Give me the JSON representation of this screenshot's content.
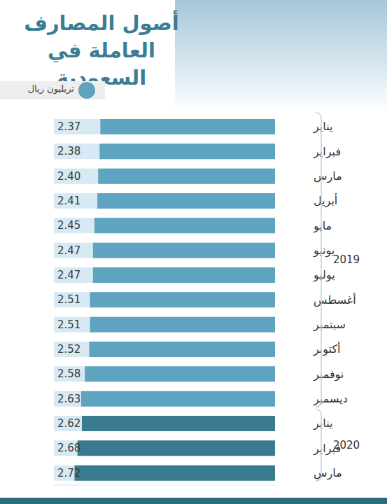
{
  "chart_data": {
    "type": "bar",
    "orientation": "horizontal",
    "title": "أصول المصارف\nالعاملة في السعودية",
    "xlabel": "تريليون ريال",
    "categories": [
      "يناير",
      "فبراير",
      "مارس",
      "أبريل",
      "مايو",
      "يونيو",
      "يوليو",
      "أغسطس",
      "سبتمبر",
      "أكتوبر",
      "نوفمبر",
      "ديسمبر",
      "يناير",
      "فبراير",
      "مارس"
    ],
    "years": [
      "2019",
      "2019",
      "2019",
      "2019",
      "2019",
      "2019",
      "2019",
      "2019",
      "2019",
      "2019",
      "2019",
      "2019",
      "2020",
      "2020",
      "2020"
    ],
    "values": [
      2.37,
      2.38,
      2.4,
      2.41,
      2.45,
      2.47,
      2.47,
      2.51,
      2.51,
      2.52,
      2.58,
      2.63,
      2.62,
      2.68,
      2.72
    ],
    "value_labels": [
      "2.37",
      "2.38",
      "2.40",
      "2.41",
      "2.45",
      "2.47",
      "2.47",
      "2.51",
      "2.51",
      "2.52",
      "2.58",
      "2.63",
      "2.62",
      "2.68",
      "2.72"
    ],
    "colors": [
      "#5ea3bf",
      "#5ea3bf",
      "#5ea3bf",
      "#5ea3bf",
      "#5ea3bf",
      "#5ea3bf",
      "#5ea3bf",
      "#5ea3bf",
      "#5ea3bf",
      "#5ea3bf",
      "#5ea3bf",
      "#5ea3bf",
      "#3b7b8f",
      "#3b7b8f",
      "#3b7b8f"
    ],
    "xlim": [
      0,
      3
    ],
    "xticks": [
      0,
      3
    ],
    "tick_labels": "y",
    "data_labels": true,
    "grid": false
  }
}
